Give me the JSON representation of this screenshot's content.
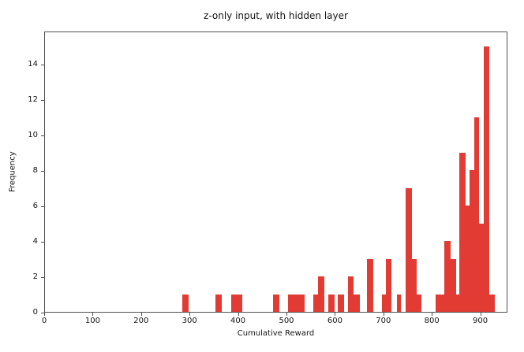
{
  "chart_data": {
    "type": "bar",
    "subtype": "histogram",
    "title": "z-only input, with hidden layer",
    "xlabel": "Cumulative Reward",
    "ylabel": "Frequency",
    "xlim": [
      0,
      956
    ],
    "ylim": [
      0,
      15.87
    ],
    "xticks": [
      0,
      100,
      200,
      300,
      400,
      500,
      600,
      700,
      800,
      900
    ],
    "yticks": [
      0,
      2,
      4,
      6,
      8,
      10,
      12,
      14
    ],
    "grid": false,
    "legend": "none",
    "bar_color": "#e23b34",
    "spine_color": "#4f4f4f",
    "background_color": "#ffffff",
    "bars_format": "[x_start, x_end, frequency]",
    "bars": [
      [
        283,
        296,
        1
      ],
      [
        352,
        365,
        1
      ],
      [
        384,
        407,
        1
      ],
      [
        470,
        484,
        1
      ],
      [
        502,
        536,
        1
      ],
      [
        554,
        564,
        1
      ],
      [
        564,
        577,
        2
      ],
      [
        585,
        598,
        1
      ],
      [
        604,
        617,
        1
      ],
      [
        625,
        637,
        2
      ],
      [
        637,
        650,
        1
      ],
      [
        664,
        677,
        3
      ],
      [
        695,
        703,
        1
      ],
      [
        703,
        715,
        3
      ],
      [
        726,
        735,
        1
      ],
      [
        744,
        757,
        7
      ],
      [
        757,
        767,
        3
      ],
      [
        767,
        777,
        1
      ],
      [
        806,
        824,
        1
      ],
      [
        824,
        837,
        4
      ],
      [
        837,
        849,
        3
      ],
      [
        849,
        855,
        1
      ],
      [
        855,
        868,
        9
      ],
      [
        868,
        876,
        6
      ],
      [
        876,
        886,
        8
      ],
      [
        886,
        896,
        11
      ],
      [
        896,
        905,
        5
      ],
      [
        905,
        917,
        15
      ],
      [
        917,
        928,
        1
      ]
    ]
  }
}
